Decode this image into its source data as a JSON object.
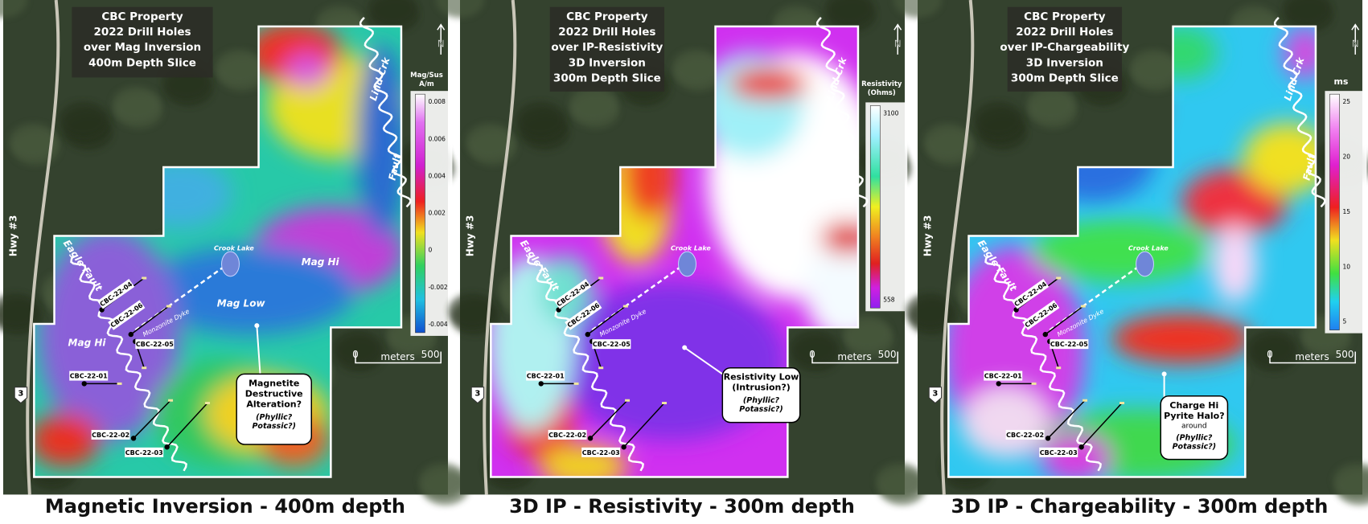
{
  "panels": [
    {
      "title": [
        "CBC Property",
        "2022 Drill Holes",
        "over Mag Inversion",
        "400m Depth Slice"
      ],
      "legend": {
        "title": [
          "Mag/Sus",
          "A/m"
        ],
        "ticks": [
          "0.008",
          "0.006",
          "0.004",
          "0.002",
          "0",
          "-0.002",
          "-0.004"
        ]
      },
      "labels": {
        "creek": "Lind Crk",
        "fault": "Fault",
        "highway": "Hwy #3",
        "eagle_fault": "Eagle Fault",
        "lake": "Crook Lake",
        "dyke": "Monzonite Dyke",
        "road_shield": "3",
        "north": "N"
      },
      "zones": [
        "Mag Hi",
        "Mag Hi",
        "Mag Low"
      ],
      "drill_holes": [
        "CBC-22-04",
        "CBC-22-06",
        "CBC-22-05",
        "CBC-22-01",
        "CBC-22-02",
        "CBC-22-03"
      ],
      "callout": {
        "lines": [
          "Magnetite",
          "Destructive",
          "Alteration?"
        ],
        "note": [
          "(Phyllic?",
          "Potassic?)"
        ]
      },
      "scale": [
        "0",
        "meters",
        "500"
      ],
      "caption": "Magnetic Inversion - 400m depth"
    },
    {
      "title": [
        "CBC Property",
        "2022 Drill Holes",
        "over IP-Resistivity",
        "3D Inversion",
        "300m Depth Slice"
      ],
      "legend": {
        "title": [
          "Resistivity",
          "(Ohms)"
        ],
        "ticks": [
          "3100",
          "558"
        ]
      },
      "labels": {
        "creek": "Lind Crk",
        "fault": "Fault",
        "highway": "Hwy #3",
        "eagle_fault": "Eagle Fault",
        "lake": "Crook Lake",
        "dyke": "Monzonite Dyke",
        "road_shield": "3",
        "north": "N"
      },
      "zones": [],
      "drill_holes": [
        "CBC-22-04",
        "CBC-22-06",
        "CBC-22-05",
        "CBC-22-01",
        "CBC-22-02",
        "CBC-22-03"
      ],
      "callout": {
        "lines": [
          "Resistivity Low",
          "(Intrusion?)"
        ],
        "note": [
          "(Phyllic?",
          "Potassic?)"
        ]
      },
      "scale": [
        "0",
        "meters",
        "500"
      ],
      "caption": "3D IP - Resistivity - 300m depth"
    },
    {
      "title": [
        "CBC Property",
        "2022 Drill Holes",
        "over IP-Chargeability",
        "3D Inversion",
        "300m Depth Slice"
      ],
      "legend": {
        "title": [
          "ms"
        ],
        "ticks": [
          "25",
          "20",
          "15",
          "10",
          "5"
        ]
      },
      "labels": {
        "creek": "Lind Crk",
        "fault": "Fault",
        "highway": "Hwy #3",
        "eagle_fault": "Eagle Fault",
        "lake": "Crook Lake",
        "dyke": "Monzonite Dyke",
        "road_shield": "3",
        "north": "N"
      },
      "zones": [],
      "drill_holes": [
        "CBC-22-04",
        "CBC-22-06",
        "CBC-22-05",
        "CBC-22-01",
        "CBC-22-02",
        "CBC-22-03"
      ],
      "callout": {
        "lines": [
          "Charge Hi",
          "Pyrite Halo?"
        ],
        "sub": "around",
        "note": [
          "(Phyllic?",
          "Potassic?)"
        ]
      },
      "scale": [
        "0",
        "meters",
        "500"
      ],
      "caption": "3D IP - Chargeability - 300m depth"
    }
  ]
}
